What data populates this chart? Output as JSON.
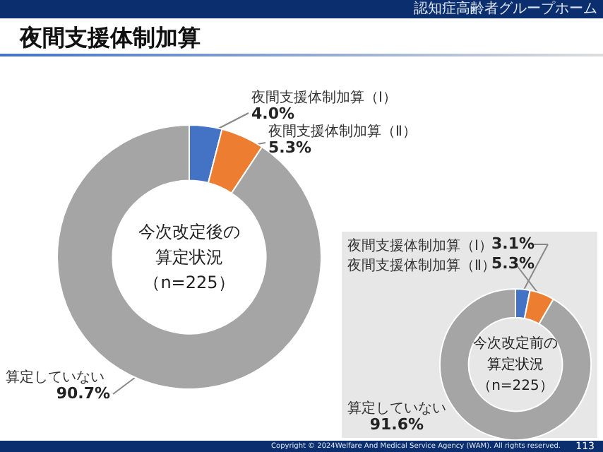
{
  "chart_data": [
    {
      "type": "donut",
      "title": "夜間支援体制加算",
      "subtitle": "今次改定後の算定状況（n=225）",
      "categories": [
        "夜間支援体制加算（Ⅰ）",
        "夜間支援体制加算（Ⅱ）",
        "算定していない"
      ],
      "values": [
        4.0,
        5.3,
        90.7
      ],
      "colors": [
        "#4472c4",
        "#ed7d31",
        "#a5a5a5"
      ],
      "value_labels": [
        "4.0%",
        "5.3%",
        "90.7%"
      ],
      "annotations": [
        "認知症高齢者グループホーム",
        "Copyright © 2024Welfare And Medical Service Agency (WAM). All rights reserved.",
        "113"
      ]
    },
    {
      "type": "donut",
      "subtitle": "今次改定前の算定状況（n=225）",
      "categories": [
        "夜間支援体制加算（Ⅰ）",
        "夜間支援体制加算（Ⅱ）",
        "算定していない"
      ],
      "values": [
        3.1,
        5.3,
        91.6
      ],
      "colors": [
        "#4472c4",
        "#ed7d31",
        "#a5a5a5"
      ],
      "value_labels": [
        "3.1%",
        "5.3%",
        "91.6%"
      ]
    }
  ]
}
